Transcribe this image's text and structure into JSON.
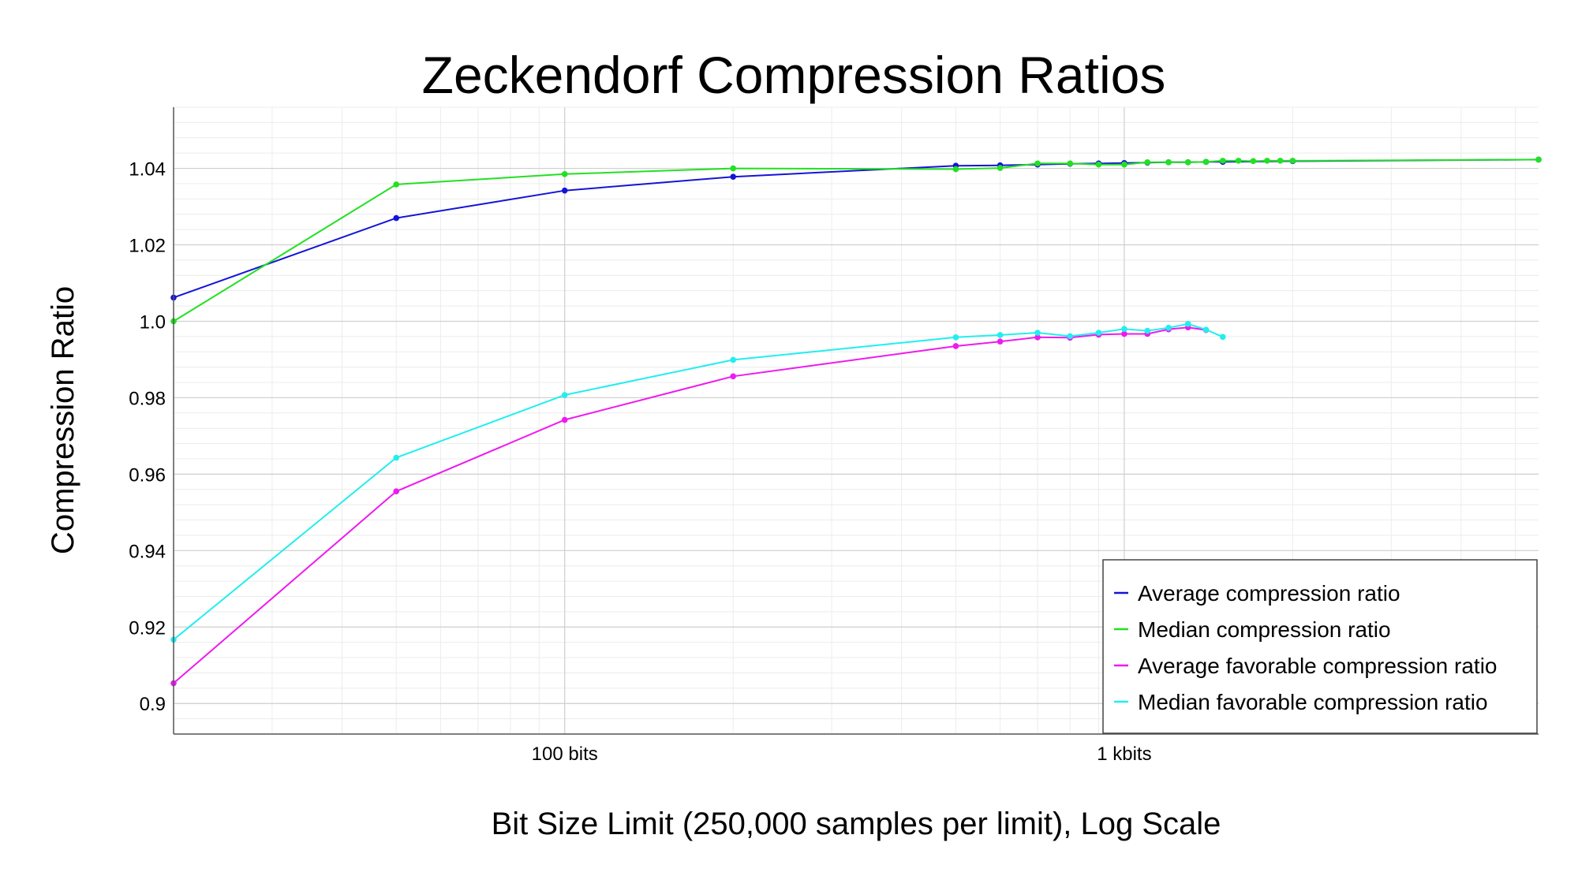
{
  "chart_data": {
    "type": "line",
    "title": "Zeckendorf Compression Ratios",
    "xlabel": "Bit Size Limit (250,000 samples per limit), Log Scale",
    "ylabel": "Compression Ratio",
    "x_scale": "log",
    "xlim": [
      20,
      5500
    ],
    "ylim": [
      0.892,
      1.056
    ],
    "x_ticks": [
      {
        "value": 100,
        "label": "100 bits"
      },
      {
        "value": 1000,
        "label": "1 kbits"
      }
    ],
    "y_ticks": [
      {
        "value": 0.9,
        "label": "0.9"
      },
      {
        "value": 0.92,
        "label": "0.92"
      },
      {
        "value": 0.94,
        "label": "0.94"
      },
      {
        "value": 0.96,
        "label": "0.96"
      },
      {
        "value": 0.98,
        "label": "0.98"
      },
      {
        "value": 1.0,
        "label": "1.0"
      },
      {
        "value": 1.02,
        "label": "1.02"
      },
      {
        "value": 1.04,
        "label": "1.04"
      }
    ],
    "grid": true,
    "legend_position": "bottom-right",
    "series": [
      {
        "name": "Average compression ratio",
        "color": "#1414d8",
        "x": [
          20,
          50,
          100,
          200,
          500,
          600,
          700,
          800,
          900,
          1000,
          1100,
          1200,
          1300,
          1400,
          1500,
          2000,
          5500
        ],
        "y": [
          1.0062,
          1.027,
          1.0342,
          1.0378,
          1.0407,
          1.0408,
          1.041,
          1.0412,
          1.0413,
          1.0414,
          1.0415,
          1.0416,
          1.0416,
          1.0417,
          1.0417,
          1.0419,
          1.0423
        ]
      },
      {
        "name": "Median compression ratio",
        "color": "#22e022",
        "x": [
          20,
          50,
          100,
          200,
          500,
          600,
          700,
          800,
          900,
          1000,
          1100,
          1200,
          1300,
          1400,
          1500,
          1600,
          1700,
          1800,
          1900,
          2000,
          5500
        ],
        "y": [
          1.0,
          1.0358,
          1.0385,
          1.04,
          1.0398,
          1.0401,
          1.0413,
          1.0413,
          1.041,
          1.041,
          1.0416,
          1.0416,
          1.0416,
          1.0417,
          1.042,
          1.042,
          1.0419,
          1.042,
          1.042,
          1.042,
          1.0423
        ]
      },
      {
        "name": "Average favorable compression ratio",
        "color": "#ee1aee",
        "x": [
          20,
          50,
          100,
          200,
          500,
          600,
          700,
          800,
          900,
          1000,
          1100,
          1200,
          1300,
          1400
        ],
        "y": [
          0.9053,
          0.9555,
          0.9742,
          0.9856,
          0.9935,
          0.9947,
          0.9958,
          0.9957,
          0.9965,
          0.9967,
          0.9967,
          0.9979,
          0.9984,
          0.9977
        ]
      },
      {
        "name": "Median favorable compression ratio",
        "color": "#22eeee",
        "x": [
          20,
          50,
          100,
          200,
          500,
          600,
          700,
          800,
          900,
          1000,
          1100,
          1200,
          1300,
          1400,
          1500
        ],
        "y": [
          0.9167,
          0.9643,
          0.9807,
          0.9899,
          0.9958,
          0.9964,
          0.997,
          0.9961,
          0.997,
          0.998,
          0.9975,
          0.9983,
          0.9993,
          0.9978,
          0.9959
        ]
      }
    ]
  }
}
